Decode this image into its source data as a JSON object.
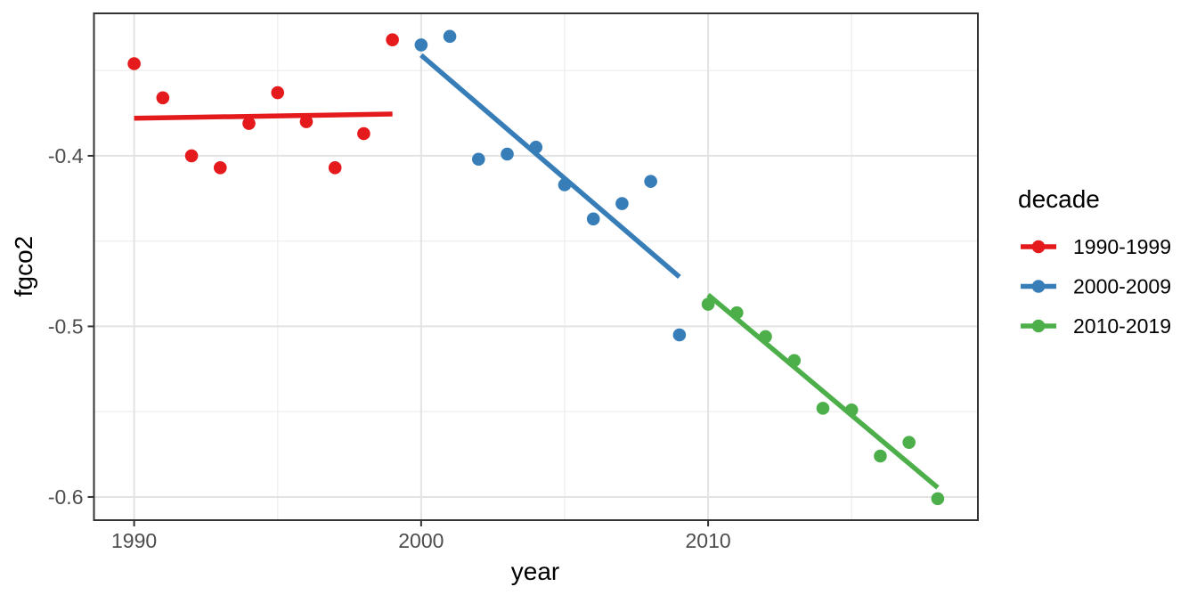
{
  "chart_data": {
    "type": "scatter",
    "title": "",
    "xlabel": "year",
    "ylabel": "fgco2",
    "xlim": [
      1988.6,
      2019.4
    ],
    "ylim": [
      -0.6136,
      -0.3165
    ],
    "grid": true,
    "x_ticks_major": [
      1990,
      2000,
      2010
    ],
    "x_tick_labels": [
      "1990",
      "2000",
      "2010"
    ],
    "x_ticks_minor": [
      1995,
      2005,
      2015
    ],
    "y_ticks_major": [
      -0.4,
      -0.5,
      -0.6
    ],
    "y_tick_labels": [
      "-0.4",
      "-0.5",
      "-0.6"
    ],
    "y_ticks_minor": [
      -0.35,
      -0.45,
      -0.55
    ],
    "legend": {
      "title": "decade",
      "position": "right",
      "entries": [
        "1990-1999",
        "2000-2009",
        "2010-2019"
      ]
    },
    "colors": {
      "grid_major": "#e3e3e3",
      "grid_minor": "#efefef",
      "panel_border": "#333333",
      "tick_mark": "#333333",
      "tick_text": "#4d4d4d"
    },
    "series": [
      {
        "name": "1990-1999",
        "color": "#E41A1C",
        "x": [
          1990,
          1991,
          1992,
          1993,
          1994,
          1995,
          1996,
          1997,
          1998,
          1999
        ],
        "y": [
          -0.346,
          -0.366,
          -0.4,
          -0.407,
          -0.381,
          -0.363,
          -0.38,
          -0.407,
          -0.387,
          -0.332
        ],
        "trend": {
          "x1": 1990,
          "y1": -0.378,
          "x2": 1999,
          "y2": -0.3755
        }
      },
      {
        "name": "2000-2009",
        "color": "#377EB8",
        "x": [
          2000,
          2001,
          2002,
          2003,
          2004,
          2005,
          2006,
          2007,
          2008,
          2009
        ],
        "y": [
          -0.335,
          -0.33,
          -0.402,
          -0.399,
          -0.395,
          -0.417,
          -0.437,
          -0.428,
          -0.415,
          -0.505
        ],
        "trend": {
          "x1": 2000,
          "y1": -0.341,
          "x2": 2009,
          "y2": -0.471
        }
      },
      {
        "name": "2010-2019",
        "color": "#4DAF4A",
        "x": [
          2010,
          2011,
          2012,
          2013,
          2014,
          2015,
          2016,
          2017,
          2018
        ],
        "y": [
          -0.487,
          -0.492,
          -0.506,
          -0.52,
          -0.548,
          -0.549,
          -0.576,
          -0.568,
          -0.601
        ],
        "trend": {
          "x1": 2010,
          "y1": -0.4815,
          "x2": 2018,
          "y2": -0.5945
        }
      }
    ]
  }
}
